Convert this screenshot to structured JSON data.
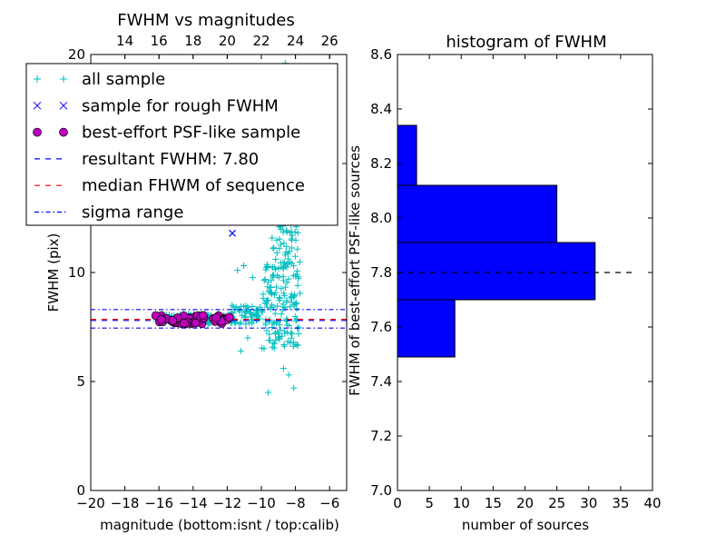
{
  "chart_data": [
    {
      "type": "scatter",
      "title": "FWHM vs magnitudes",
      "xlabel": "magnitude (bottom:isnt / top:calib)",
      "ylabel": "FWHM (pix)",
      "xlim": [
        -20,
        -5
      ],
      "ylim": [
        0,
        20
      ],
      "xticks": [
        -20,
        -18,
        -16,
        -14,
        -12,
        -10,
        -8,
        -6
      ],
      "xtick_labels": [
        "−20",
        "−18",
        "−16",
        "−14",
        "−12",
        "−10",
        "−8",
        "−6"
      ],
      "yticks": [
        0,
        5,
        10,
        15,
        20
      ],
      "ytick_labels": [
        "0",
        "5",
        "10",
        "15",
        "20"
      ],
      "top_axis": {
        "label": "calib",
        "ticks": [
          14,
          16,
          18,
          20,
          22,
          24,
          26
        ],
        "tick_labels": [
          "14",
          "16",
          "18",
          "20",
          "22",
          "24",
          "26"
        ],
        "offset": 32
      },
      "legend": {
        "placement": "upper-left",
        "entries": [
          {
            "label": "all sample",
            "marker": "+",
            "color": "#00bfbf"
          },
          {
            "label": "sample for rough FWHM",
            "marker": "x",
            "color": "#0000ff"
          },
          {
            "label": "best-effort PSF-like sample",
            "marker": "o",
            "color": "#bf00bf"
          },
          {
            "label": "resultant FWHM: 7.80",
            "line": "dashed",
            "color": "#0000ff"
          },
          {
            "label": "median FHWM of sequence",
            "line": "dashed",
            "color": "#ff0000"
          },
          {
            "label": "sigma range",
            "line": "dashdot",
            "color": "#0000ff"
          }
        ]
      },
      "hlines": [
        {
          "name": "resultant FWHM",
          "y": 7.8,
          "style": "dashed",
          "color": "#0000ff"
        },
        {
          "name": "median FHWM of sequence",
          "y": 7.85,
          "style": "dashed",
          "color": "#ff0000"
        },
        {
          "name": "sigma range upper",
          "y": 8.3,
          "style": "dashdot",
          "color": "#0000ff"
        },
        {
          "name": "sigma range lower",
          "y": 7.45,
          "style": "dashdot",
          "color": "#0000ff"
        }
      ],
      "series": [
        {
          "name": "all sample",
          "marker": "+",
          "color": "#00bfbf",
          "approximate_distribution": {
            "count": 420,
            "x_range": [
              -11.5,
              -7.5
            ],
            "y_range": [
              4.5,
              20
            ],
            "note": "flat band near 7.8 for bright sources, broad scatter up to 20 near -9 to -8"
          }
        },
        {
          "name": "sample for rough FWHM",
          "marker": "x",
          "color": "#0000ff",
          "points": [
            [
              -11.7,
              11.8
            ]
          ]
        },
        {
          "name": "best-effort PSF-like sample",
          "marker": "o",
          "color": "#bf00bf",
          "approximate_distribution": {
            "count": 55,
            "x_range": [
              -16.2,
              -11.7
            ],
            "y_range": [
              7.6,
              8.1
            ]
          }
        }
      ]
    },
    {
      "type": "bar",
      "orientation": "horizontal",
      "title": "histogram of FWHM",
      "xlabel": "number of sources",
      "ylabel": "FWHM of best-effort PSF-like sources",
      "xlim": [
        0,
        40
      ],
      "ylim": [
        7.0,
        8.6
      ],
      "xticks": [
        0,
        5,
        10,
        15,
        20,
        25,
        30,
        35,
        40
      ],
      "xtick_labels": [
        "0",
        "5",
        "10",
        "15",
        "20",
        "25",
        "30",
        "35",
        "40"
      ],
      "yticks": [
        7.0,
        7.2,
        7.4,
        7.6,
        7.8,
        8.0,
        8.2,
        8.4,
        8.6
      ],
      "ytick_labels": [
        "7.0",
        "7.2",
        "7.4",
        "7.6",
        "7.8",
        "8.0",
        "8.2",
        "8.4",
        "8.6"
      ],
      "bin_edges": [
        7.49,
        7.7,
        7.91,
        8.12,
        8.34
      ],
      "values": [
        9,
        31,
        25,
        3
      ],
      "bar_color": "#0000ff",
      "reference_line": {
        "y": 7.8,
        "x_range": [
          0,
          37
        ],
        "style": "dashed",
        "color": "#000000"
      }
    }
  ]
}
